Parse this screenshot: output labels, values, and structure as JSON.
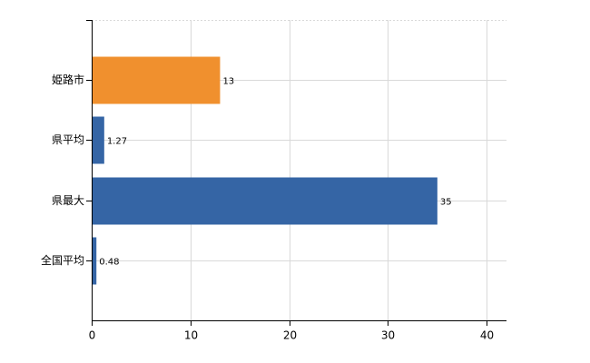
{
  "chart_data": {
    "type": "bar",
    "orientation": "horizontal",
    "categories": [
      "姫路市",
      "県平均",
      "県最大",
      "全国平均"
    ],
    "values": [
      13,
      1.27,
      35,
      0.48
    ],
    "colors": [
      "#f0902e",
      "#3565a5",
      "#3565a5",
      "#3565a5"
    ],
    "xlim": [
      0,
      42
    ],
    "xticks": [
      0,
      10,
      20,
      30,
      40
    ],
    "grid": true
  }
}
